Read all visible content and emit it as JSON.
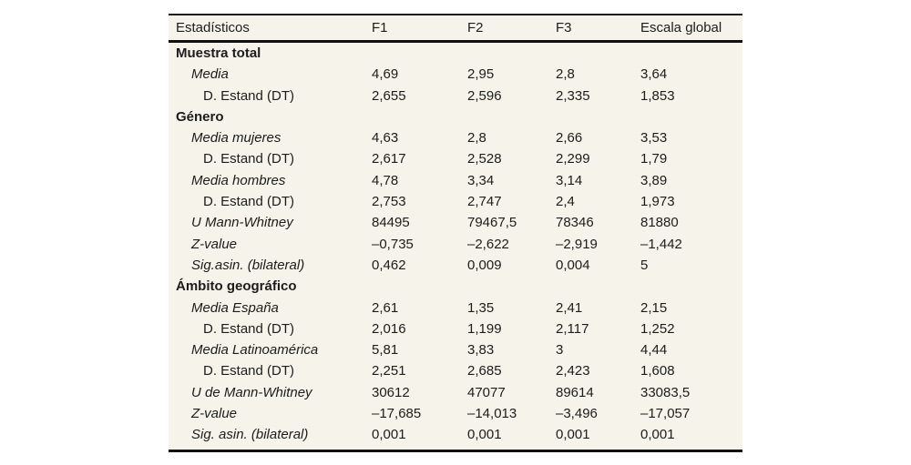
{
  "table": {
    "background_color": "#f6f3ea",
    "rule_color": "#111111",
    "text_color": "#1c1c1c",
    "columns": [
      "Estadísticos",
      "F1",
      "F2",
      "F3",
      "Escala global"
    ],
    "rows": [
      {
        "label": "Muestra total",
        "style": "section",
        "values": [
          "",
          "",
          "",
          ""
        ]
      },
      {
        "label": "Media",
        "style": "italic",
        "values": [
          "4,69",
          "2,95",
          "2,8",
          "3,64"
        ]
      },
      {
        "label": "D. Estand (DT)",
        "style": "indent2",
        "values": [
          "2,655",
          "2,596",
          "2,335",
          "1,853"
        ]
      },
      {
        "label": "Género",
        "style": "section",
        "values": [
          "",
          "",
          "",
          ""
        ]
      },
      {
        "label": "Media mujeres",
        "style": "italic",
        "values": [
          "4,63",
          "2,8",
          "2,66",
          "3,53"
        ]
      },
      {
        "label": "D. Estand (DT)",
        "style": "indent2",
        "values": [
          "2,617",
          "2,528",
          "2,299",
          "1,79"
        ]
      },
      {
        "label": "Media hombres",
        "style": "italic",
        "values": [
          "4,78",
          "3,34",
          "3,14",
          "3,89"
        ]
      },
      {
        "label": "D. Estand (DT)",
        "style": "indent2",
        "values": [
          "2,753",
          "2,747",
          "2,4",
          "1,973"
        ]
      },
      {
        "label": "U Mann-Whitney",
        "style": "italic",
        "values": [
          "84495",
          "79467,5",
          "78346",
          "81880"
        ]
      },
      {
        "label": "Z-value",
        "style": "italic",
        "values": [
          "–0,735",
          "–2,622",
          "–2,919",
          "–1,442"
        ]
      },
      {
        "label": "Sig.asin. (bilateral)",
        "style": "italic",
        "values": [
          "0,462",
          "0,009",
          "0,004",
          "5"
        ]
      },
      {
        "label": "Ámbito geográfico",
        "style": "section",
        "values": [
          "",
          "",
          "",
          ""
        ]
      },
      {
        "label": "Media España",
        "style": "italic",
        "values": [
          "2,61",
          "1,35",
          "2,41",
          "2,15"
        ]
      },
      {
        "label": "D. Estand (DT)",
        "style": "indent2",
        "values": [
          "2,016",
          "1,199",
          "2,117",
          "1,252"
        ]
      },
      {
        "label": "Media Latinoamérica",
        "style": "italic",
        "values": [
          "5,81",
          "3,83",
          "3",
          "4,44"
        ]
      },
      {
        "label": "D. Estand (DT)",
        "style": "indent2",
        "values": [
          "2,251",
          "2,685",
          "2,423",
          "1,608"
        ]
      },
      {
        "label": "U de Mann-Whitney",
        "style": "italic",
        "values": [
          "30612",
          "47077",
          "89614",
          "33083,5"
        ]
      },
      {
        "label": "Z-value",
        "style": "italic",
        "values": [
          "–17,685",
          "–14,013",
          "–3,496",
          "–17,057"
        ]
      },
      {
        "label": "Sig. asin. (bilateral)",
        "style": "italic",
        "values": [
          "0,001",
          "0,001",
          "0,001",
          "0,001"
        ]
      }
    ]
  },
  "chart_data": {
    "type": "table",
    "title": "Estadísticos",
    "columns": [
      "Estadísticos",
      "F1",
      "F2",
      "F3",
      "Escala global"
    ],
    "sections": [
      {
        "name": "Muestra total",
        "rows": [
          {
            "label": "Media",
            "F1": "4,69",
            "F2": "2,95",
            "F3": "2,8",
            "Escala global": "3,64"
          },
          {
            "label": "D. Estand (DT)",
            "F1": "2,655",
            "F2": "2,596",
            "F3": "2,335",
            "Escala global": "1,853"
          }
        ]
      },
      {
        "name": "Género",
        "rows": [
          {
            "label": "Media mujeres",
            "F1": "4,63",
            "F2": "2,8",
            "F3": "2,66",
            "Escala global": "3,53"
          },
          {
            "label": "D. Estand (DT)",
            "F1": "2,617",
            "F2": "2,528",
            "F3": "2,299",
            "Escala global": "1,79"
          },
          {
            "label": "Media hombres",
            "F1": "4,78",
            "F2": "3,34",
            "F3": "3,14",
            "Escala global": "3,89"
          },
          {
            "label": "D. Estand (DT)",
            "F1": "2,753",
            "F2": "2,747",
            "F3": "2,4",
            "Escala global": "1,973"
          },
          {
            "label": "U Mann-Whitney",
            "F1": "84495",
            "F2": "79467,5",
            "F3": "78346",
            "Escala global": "81880"
          },
          {
            "label": "Z-value",
            "F1": "–0,735",
            "F2": "–2,622",
            "F3": "–2,919",
            "Escala global": "–1,442"
          },
          {
            "label": "Sig.asin. (bilateral)",
            "F1": "0,462",
            "F2": "0,009",
            "F3": "0,004",
            "Escala global": "5"
          }
        ]
      },
      {
        "name": "Ámbito geográfico",
        "rows": [
          {
            "label": "Media España",
            "F1": "2,61",
            "F2": "1,35",
            "F3": "2,41",
            "Escala global": "2,15"
          },
          {
            "label": "D. Estand (DT)",
            "F1": "2,016",
            "F2": "1,199",
            "F3": "2,117",
            "Escala global": "1,252"
          },
          {
            "label": "Media Latinoamérica",
            "F1": "5,81",
            "F2": "3,83",
            "F3": "3",
            "Escala global": "4,44"
          },
          {
            "label": "D. Estand (DT)",
            "F1": "2,251",
            "F2": "2,685",
            "F3": "2,423",
            "Escala global": "1,608"
          },
          {
            "label": "U de Mann-Whitney",
            "F1": "30612",
            "F2": "47077",
            "F3": "89614",
            "Escala global": "33083,5"
          },
          {
            "label": "Z-value",
            "F1": "–17,685",
            "F2": "–14,013",
            "F3": "–3,496",
            "Escala global": "–17,057"
          },
          {
            "label": "Sig. asin. (bilateral)",
            "F1": "0,001",
            "F2": "0,001",
            "F3": "0,001",
            "Escala global": "0,001"
          }
        ]
      }
    ]
  }
}
